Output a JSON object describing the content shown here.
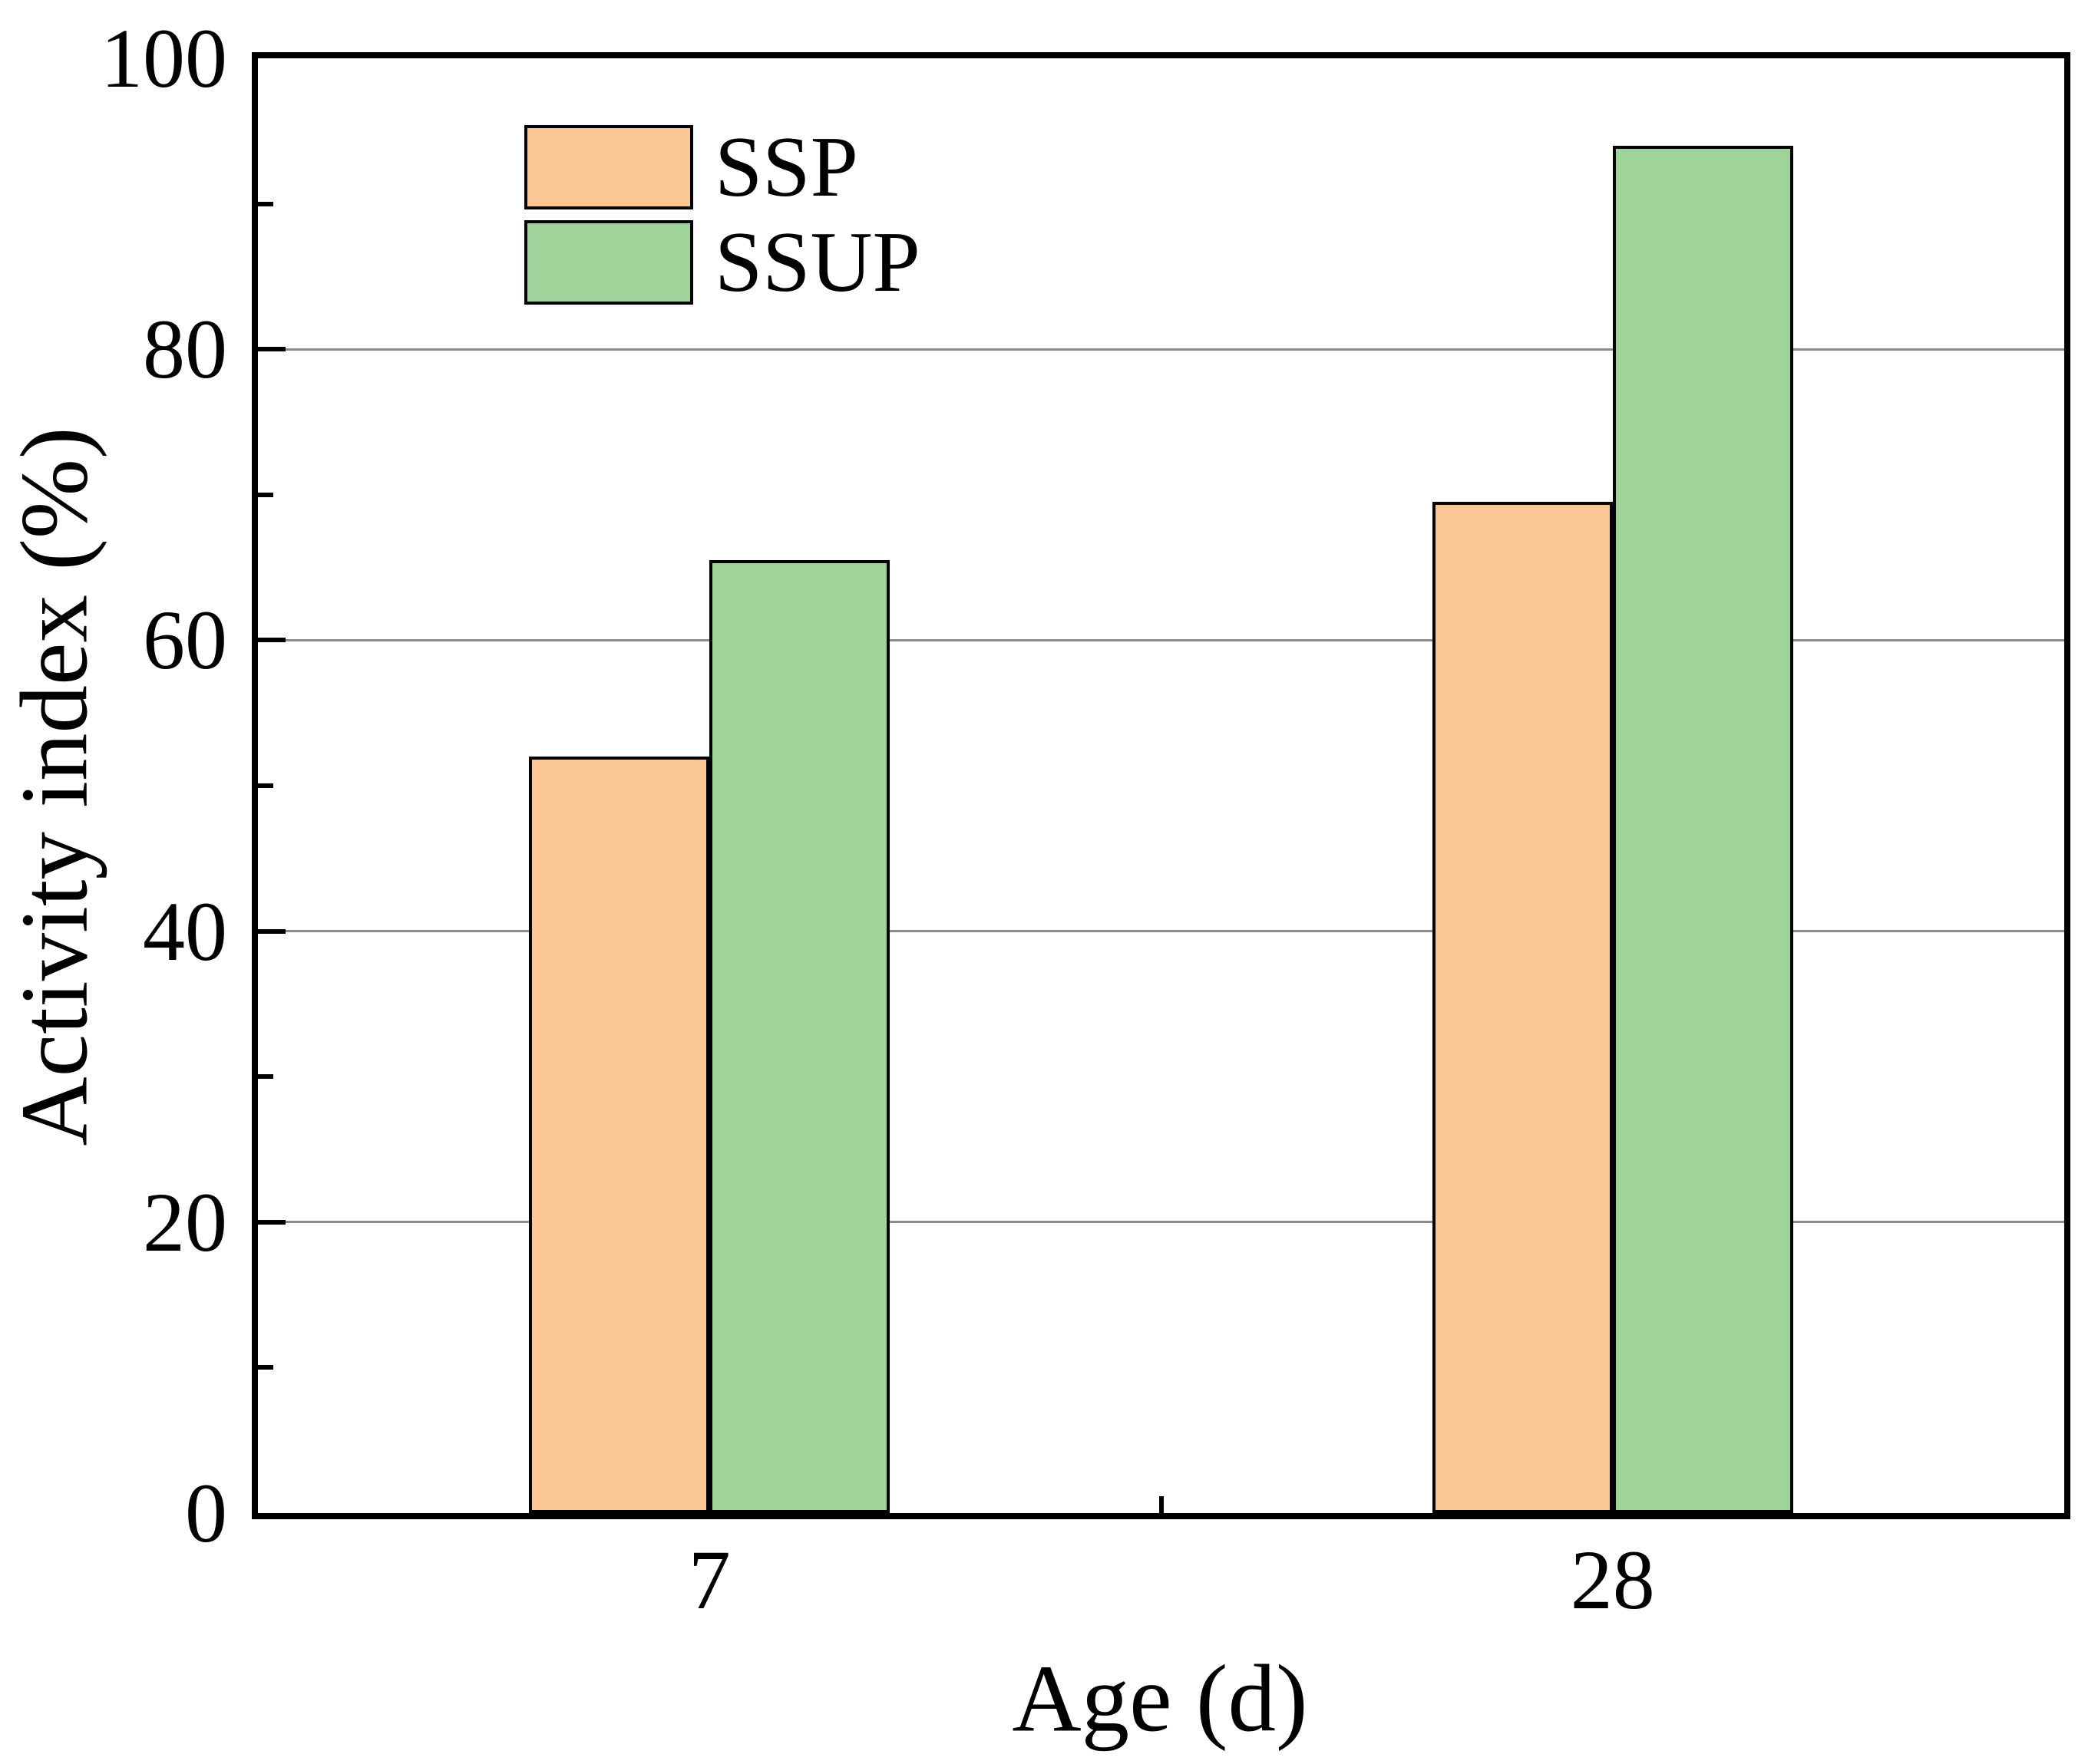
{
  "figure": {
    "background": "#ffffff",
    "axis_color": "#000000"
  },
  "chart_data": {
    "type": "bar",
    "title": "",
    "xlabel": "Age (d)",
    "ylabel": "Activity index (%)",
    "categories": [
      "7",
      "28"
    ],
    "series": [
      {
        "name": "SSP",
        "color": "#FAC795",
        "values": [
          52,
          69.5
        ]
      },
      {
        "name": "SSUP",
        "color": "#9ED49A",
        "values": [
          65.5,
          94
        ]
      }
    ],
    "ylim": [
      0,
      100
    ],
    "yticks": [
      0,
      20,
      40,
      60,
      80,
      100
    ],
    "minor_yticks": [
      10,
      30,
      50,
      70,
      90
    ],
    "grid": "horizontal-at-major-ticks",
    "gridline_color": "#8c8c8c",
    "bar_edge_color": "#000000",
    "legend_position": "top-left",
    "legend_entries": [
      "SSP",
      "SSUP"
    ]
  }
}
